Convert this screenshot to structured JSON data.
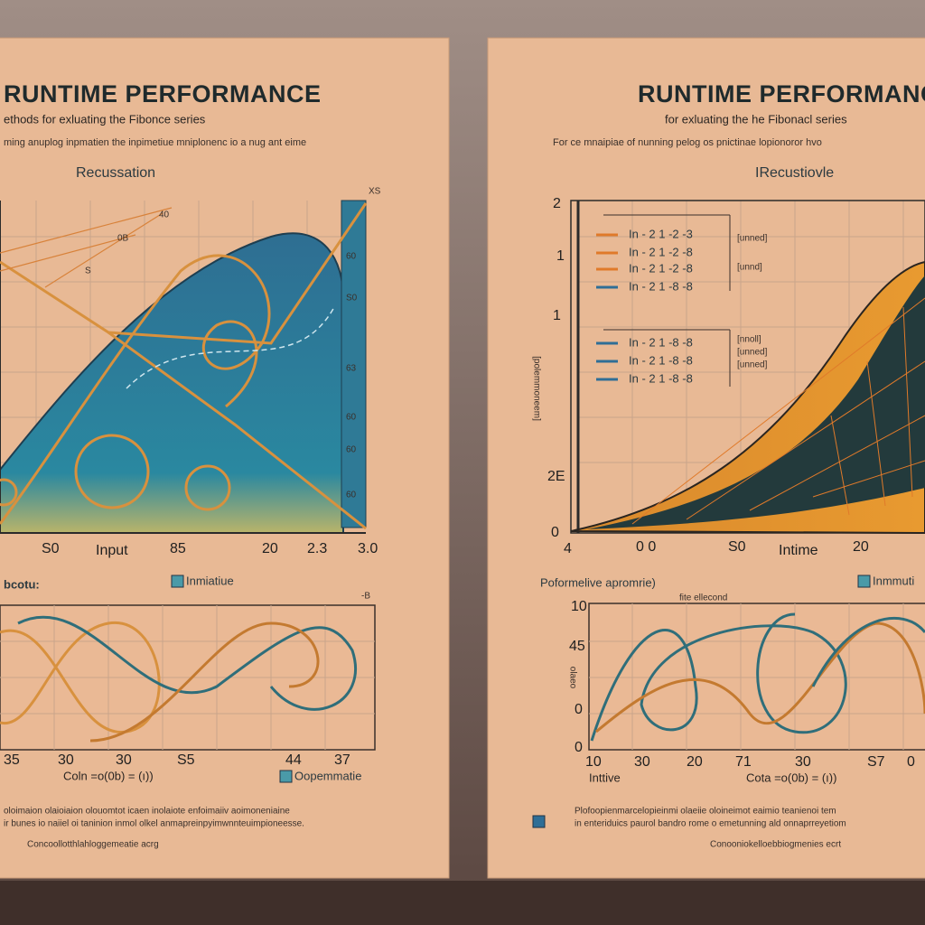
{
  "left_poster": {
    "title": "RUNTIME PERFORMANCE",
    "subtitle": "ethods for exluating the Fibonce series",
    "description": "ming anuplog inpmatien the inpimetiue mniplonenc io a nug ant eime",
    "top_chart": {
      "label": "Recussation",
      "corner_label": "XS",
      "x_labels": [
        "S0",
        "Input",
        "85",
        "20",
        "2.3",
        "3.0"
      ],
      "right_labels": [
        "60",
        "S0",
        "63",
        "60",
        "60",
        "60"
      ],
      "curve_labels": [
        "40",
        "0B",
        "S"
      ]
    },
    "legend": "Inmiatiue",
    "lower_chart": {
      "label": "bcotu:",
      "corner_label": "-B",
      "x_labels": [
        "35",
        "30",
        "30",
        "S5",
        "44",
        "37"
      ],
      "x_title": "Coln =o(0b) = (ı))",
      "legend": "Oopemmatie"
    },
    "footer_lines": [
      "oloimaion olaioiaion olouomtot icaen inolaiote enfoimaiiv aoimoneniaine",
      "ir bunes io naiiel oi taninion inmol olkel anmapreinpyimwnnteuimpioneesse."
    ],
    "credit": "Concoollotthlahloggemeatie acrg"
  },
  "right_poster": {
    "title": "RUNTIME PERFORMANCE",
    "subtitle": "for exluating the he Fibonacl series",
    "description": "For ce mnaipiae of nunning pelog os pnictinae lopionoror hvo",
    "top_chart": {
      "label": "IRecustiovle",
      "y_title": "[polemmoneem]",
      "y_labels": [
        "2",
        "1",
        "1",
        "2E",
        "0"
      ],
      "x_labels": [
        "4",
        "0 0",
        "S0",
        "Intime",
        "20"
      ],
      "legend_rows": [
        "In - 2 1 -2 -3",
        "In - 2 1 -2 -8",
        "In - 2 1 -2 -8",
        "In - 2 1 -8 -8",
        "In - 2 1 -8 -8",
        "In - 2 1 -8 -8",
        "In - 2 1 -8 -8"
      ],
      "legend_notes": [
        "[unned]",
        "[unnd]",
        "[nnoll]",
        "[unned]",
        "[unned]"
      ]
    },
    "lower_chart": {
      "label": "Poformelive apromrie)",
      "note": "fite ellecond",
      "legend": "Inmmuti",
      "y_title": "olaeo",
      "y_labels": [
        "10",
        "45",
        "0",
        "0"
      ],
      "x_labels": [
        "10",
        "30",
        "20",
        "71",
        "30",
        "S7",
        "0"
      ],
      "x_start": "Inttive",
      "x_title": "Cota =o(0b) = (ı))"
    },
    "footer_lines": [
      "Plofoopienmarcelopieinmi olaeiie oloineimot eaimio teanienoi tem",
      "in enteriduics paurol bandro rome o emetunning ald onnaprreyetiom"
    ],
    "credit": "Conooniokelloebbiogmenies ecrt"
  }
}
